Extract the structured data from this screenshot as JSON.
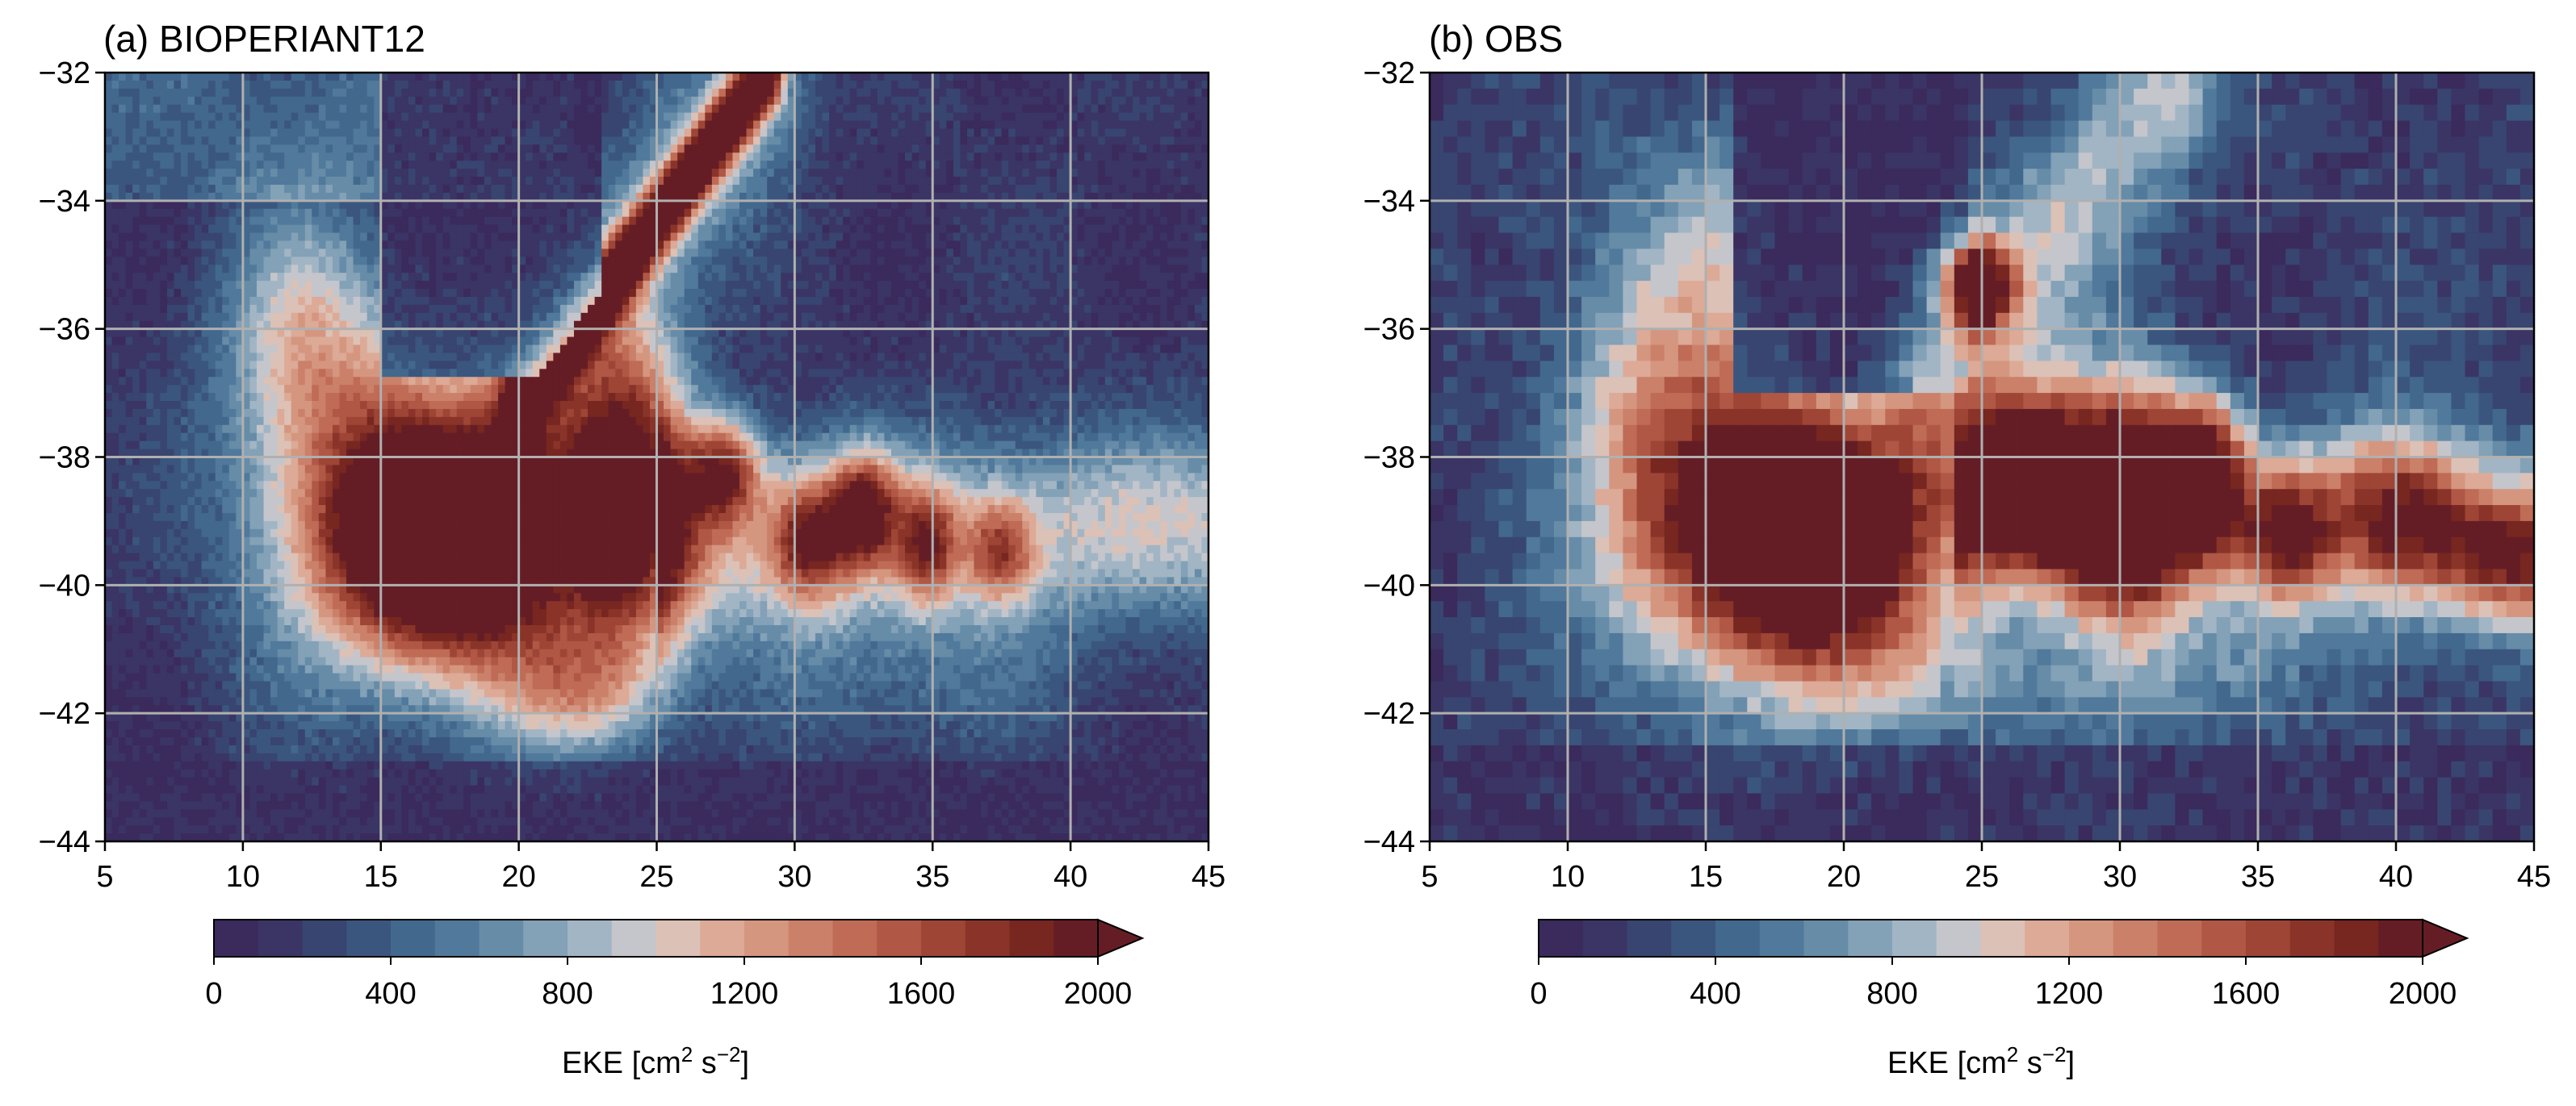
{
  "figure": {
    "panels": [
      {
        "id": "a",
        "title": "(a) BIOPERIANT12"
      },
      {
        "id": "b",
        "title": "(b) OBS"
      }
    ],
    "colorbar": {
      "label_main": "EKE [cm",
      "label_sup1": "2",
      "label_mid": " s",
      "label_sup2": "−2",
      "label_end": "]",
      "min": 0,
      "max": 2000,
      "step": 100,
      "extend": "max",
      "tick_values": [
        0,
        400,
        800,
        1200,
        1600,
        2000
      ],
      "tick_labels": [
        "0",
        "400",
        "800",
        "1200",
        "1600",
        "2000"
      ],
      "colors": [
        "#3b2a5c",
        "#3a3565",
        "#384570",
        "#3b567e",
        "#42688d",
        "#50799b",
        "#668ca8",
        "#83a1b7",
        "#a2b5c4",
        "#c4c6cc",
        "#dcc1b6",
        "#dcaa96",
        "#d59680",
        "#cb806a",
        "#bf6b56",
        "#b05745",
        "#9e4536",
        "#8a3429",
        "#772620",
        "#651d25"
      ]
    },
    "x_ticks": [
      "5",
      "10",
      "15",
      "20",
      "25",
      "30",
      "35",
      "40",
      "45"
    ],
    "y_ticks": [
      "-32",
      "-34",
      "-36",
      "-38",
      "-40",
      "-42",
      "-44"
    ],
    "grid": "on"
  },
  "chart_data": [
    {
      "type": "heatmap",
      "title": "(a) BIOPERIANT12",
      "xlabel": "",
      "ylabel": "",
      "xlim": [
        5,
        45
      ],
      "ylim": [
        -44,
        -32
      ],
      "xticks": [
        5,
        10,
        15,
        20,
        25,
        30,
        35,
        40,
        45
      ],
      "yticks": [
        -32,
        -34,
        -36,
        -38,
        -40,
        -42,
        -44
      ],
      "colorbar_label": "EKE [cm2 s−2]",
      "colorbar_range": [
        0,
        2000
      ],
      "features": {
        "high_core": {
          "lon": [
            15,
            22
          ],
          "lat": [
            -41.2,
            -37.5
          ],
          "eke": 2000
        },
        "retroflection_band": {
          "lon": [
            22,
            30
          ],
          "lat": [
            -41,
            -32
          ],
          "eke": 1800
        },
        "eastward_retroflection": {
          "lon": [
            27,
            40
          ],
          "lat": [
            -40.5,
            -38
          ],
          "eke": 1400
        },
        "background_south": {
          "lat": -43.5,
          "eke": 150
        },
        "background_ne": {
          "lon": 40,
          "lat": -33,
          "eke": 100
        }
      }
    },
    {
      "type": "heatmap",
      "title": "(b) OBS",
      "xlabel": "",
      "ylabel": "",
      "xlim": [
        5,
        45
      ],
      "ylim": [
        -44,
        -32
      ],
      "xticks": [
        5,
        10,
        15,
        20,
        25,
        30,
        35,
        40,
        45
      ],
      "yticks": [
        -32,
        -34,
        -36,
        -38,
        -40,
        -42,
        -44
      ],
      "colorbar_label": "EKE [cm2 s−2]",
      "colorbar_range": [
        0,
        2000
      ],
      "features": {
        "high_core": {
          "lon": [
            14,
            23
          ],
          "lat": [
            -41.2,
            -37.2
          ],
          "eke": 2000
        },
        "isolated_eddy": {
          "lon": [
            23.5,
            26
          ],
          "lat": [
            -36,
            -34.8
          ],
          "eke": 1800
        },
        "eastward_retroflection": {
          "lon": [
            24,
            34
          ],
          "lat": [
            -40.5,
            -37
          ],
          "eke": 1800
        },
        "eastward_extension": {
          "lon": [
            34,
            45
          ],
          "lat": [
            -40.5,
            -38
          ],
          "eke": 1300
        },
        "background_south": {
          "lat": -43.5,
          "eke": 200
        },
        "background_north": {
          "lon": 20,
          "lat": -33,
          "eke": 100
        }
      }
    }
  ]
}
